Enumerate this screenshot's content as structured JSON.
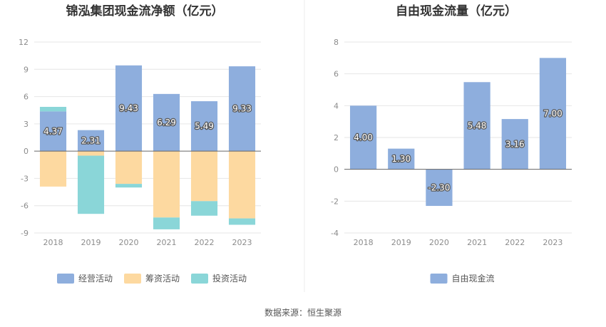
{
  "source_text": "数据来源：恒生聚源",
  "chart_data": [
    {
      "type": "bar",
      "stacked": true,
      "title": "锦泓集团现金流净额（亿元）",
      "categories": [
        "2018",
        "2019",
        "2020",
        "2021",
        "2022",
        "2023"
      ],
      "ylim": [
        -9,
        12
      ],
      "yticks": [
        -9,
        -6,
        -3,
        0,
        3,
        6,
        9,
        12
      ],
      "grid": true,
      "legend_position": "bottom",
      "series": [
        {
          "name": "经营活动",
          "color": "#8eaedd",
          "values": [
            4.37,
            2.31,
            9.43,
            6.29,
            5.49,
            9.33
          ],
          "labels": [
            "4.37",
            "2.31",
            "9.43",
            "6.29",
            "5.49",
            "9.33"
          ]
        },
        {
          "name": "筹资活动",
          "color": "#fdd9a0",
          "values": [
            -3.9,
            -0.5,
            -3.6,
            -7.3,
            -5.5,
            -7.4
          ]
        },
        {
          "name": "投资活动",
          "color": "#8ad6d8",
          "values": [
            0.5,
            -6.4,
            -0.4,
            -1.3,
            -1.6,
            -0.7
          ]
        }
      ]
    },
    {
      "type": "bar",
      "title": "自由现金流量（亿元）",
      "categories": [
        "2018",
        "2019",
        "2020",
        "2021",
        "2022",
        "2023"
      ],
      "ylim": [
        -4,
        8
      ],
      "yticks": [
        -4,
        -2,
        0,
        2,
        4,
        6,
        8
      ],
      "grid": true,
      "legend_position": "bottom",
      "series": [
        {
          "name": "自由现金流",
          "color": "#8eaedd",
          "values": [
            4.0,
            1.3,
            -2.3,
            5.48,
            3.16,
            7.0
          ],
          "labels": [
            "4.00",
            "1.30",
            "-2.30",
            "5.48",
            "3.16",
            "7.00"
          ]
        }
      ]
    }
  ]
}
